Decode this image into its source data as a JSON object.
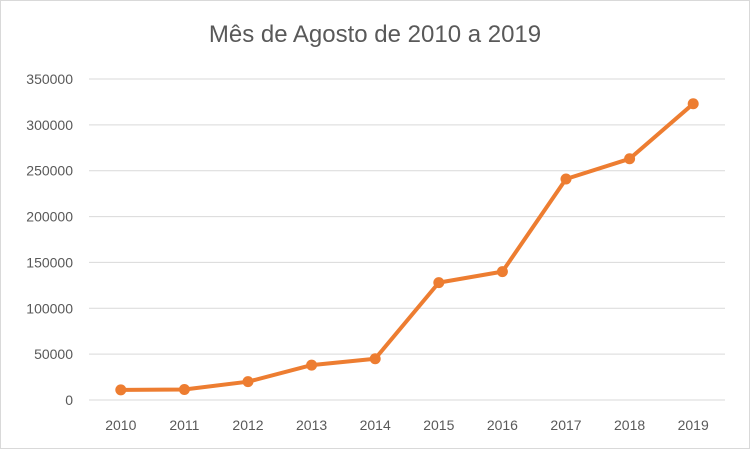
{
  "chart_data": {
    "type": "line",
    "title": "Mês de Agosto de 2010 a 2019",
    "xlabel": "",
    "ylabel": "",
    "categories": [
      "2010",
      "2011",
      "2012",
      "2013",
      "2014",
      "2015",
      "2016",
      "2017",
      "2018",
      "2019"
    ],
    "series": [
      {
        "values": [
          11000,
          11500,
          20000,
          38000,
          45000,
          128000,
          140000,
          241000,
          263000,
          323000
        ]
      }
    ],
    "ylim": [
      0,
      350000
    ],
    "yticks": [
      "0",
      "50000",
      "100000",
      "150000",
      "200000",
      "250000",
      "300000",
      "350000"
    ],
    "grid": true,
    "legend": "none",
    "colors": {
      "series": "#ED7D31",
      "grid": "#d9d9d9",
      "text": "#595959"
    }
  }
}
